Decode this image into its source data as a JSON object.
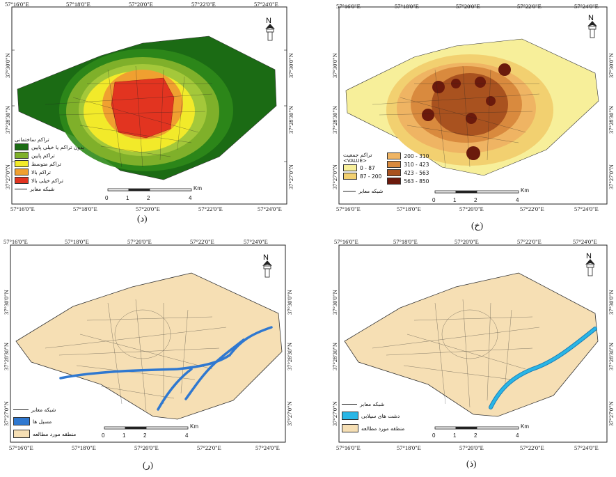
{
  "coords": {
    "top": [
      "57°16'0\"E",
      "57°18'0\"E",
      "57°20'0\"E",
      "57°22'0\"E",
      "57°24'0\"E"
    ],
    "side": [
      "37°30'0\"N",
      "37°28'30\"N",
      "37°27'0\"N"
    ]
  },
  "panels": [
    {
      "caption": "(د)",
      "legend_title": "تراکم ساختمانی",
      "legend": [
        {
          "label": "بدون تراکم یا خیلی پایین",
          "color": "#1b6b14"
        },
        {
          "label": "تراکم پایین",
          "color": "#7fb02a"
        },
        {
          "label": "تراکم متوسط",
          "color": "#f2ea2a"
        },
        {
          "label": "تراکم بالا",
          "color": "#f0a030"
        },
        {
          "label": "تراکم خیلی بالا",
          "color": "#e23420"
        }
      ],
      "roads_label": "شبکه معابر",
      "scale_labels": [
        "0",
        "1",
        "2",
        "4"
      ],
      "scale_unit": "Km"
    },
    {
      "caption": "(خ)",
      "legend_title": "تراکم جمعیت",
      "legend_sub": "<VALUE>",
      "legend": [
        {
          "label": "0 - 87",
          "color": "#f7ef9a"
        },
        {
          "label": "87 - 200",
          "color": "#f2d070"
        },
        {
          "label": "200 - 310",
          "color": "#efb463"
        },
        {
          "label": "310 - 423",
          "color": "#d98a3e"
        },
        {
          "label": "423 - 563",
          "color": "#a9521f"
        },
        {
          "label": "563 - 850",
          "color": "#6b1a0c"
        }
      ],
      "roads_label": "شبکه معابر",
      "scale_labels": [
        "0",
        "1",
        "2",
        "4"
      ],
      "scale_unit": "Km"
    },
    {
      "caption": "(ر)",
      "legend": [
        {
          "label": "شبکه معابر",
          "color": "line"
        },
        {
          "label": "مسیل ها",
          "color": "#2f78d0"
        },
        {
          "label": "منطقه مورد مطالعه",
          "color": "#f6dfb4"
        }
      ],
      "scale_labels": [
        "0",
        "1",
        "2",
        "4"
      ],
      "scale_unit": "Km"
    },
    {
      "caption": "(ذ)",
      "legend": [
        {
          "label": "شبکه معابر",
          "color": "line"
        },
        {
          "label": "دشت های سیلابی",
          "color": "#29b6e6"
        },
        {
          "label": "منطقه مورد مطالعه",
          "color": "#f6dfb4"
        }
      ],
      "scale_labels": [
        "0",
        "1",
        "2",
        "4"
      ],
      "scale_unit": "Km"
    }
  ]
}
